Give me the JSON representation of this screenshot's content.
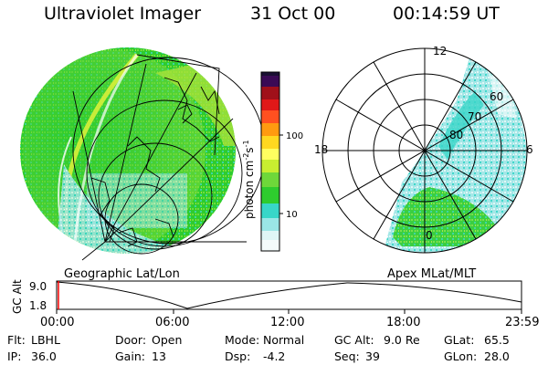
{
  "header": {
    "instrument": "Ultraviolet Imager",
    "date": "31 Oct 00",
    "time": "00:14:59 UT"
  },
  "colorbar": {
    "unit_label": "photon cm",
    "unit_exp1": "-2",
    "unit_mid": "s",
    "unit_exp2": "-1",
    "ticks": [
      "100",
      "10"
    ],
    "scale": "log"
  },
  "left_panel": {
    "caption": "Geographic Lat/Lon"
  },
  "right_panel": {
    "caption": "Apex  MLat/MLT",
    "mlt_labels": [
      "12",
      "18",
      "6",
      "0"
    ],
    "mlat_labels": [
      "60",
      "70",
      "80"
    ]
  },
  "altitude_plot": {
    "axis_label": "GC Alt",
    "y_ticks": [
      "9.0",
      "1.8"
    ],
    "x_ticks": [
      "00:00",
      "06:00",
      "12:00",
      "18:00",
      "23:59"
    ]
  },
  "status": {
    "filter": {
      "label": "Flt:",
      "value": "LBHL"
    },
    "ip": {
      "label": "IP:",
      "value": "36.0"
    },
    "door": {
      "label": "Door:",
      "value": "Open"
    },
    "gain": {
      "label": "Gain:",
      "value": "13"
    },
    "mode": {
      "label": "Mode:",
      "value": "Normal"
    },
    "dsp": {
      "label": "Dsp:",
      "value": "-4.2"
    },
    "gc_alt": {
      "label": "GC Alt:",
      "value": "9.0 Re"
    },
    "seq": {
      "label": "Seq:",
      "value": "39"
    },
    "glat": {
      "label": "GLat:",
      "value": "65.5"
    },
    "glon": {
      "label": "GLon:",
      "value": "28.0"
    }
  },
  "colors": {
    "green": "#2ecc2e",
    "yellow_green": "#b8e62e",
    "cyan": "#38d6c8",
    "light_cyan": "#bfeeee",
    "marker": "#ff0000"
  }
}
